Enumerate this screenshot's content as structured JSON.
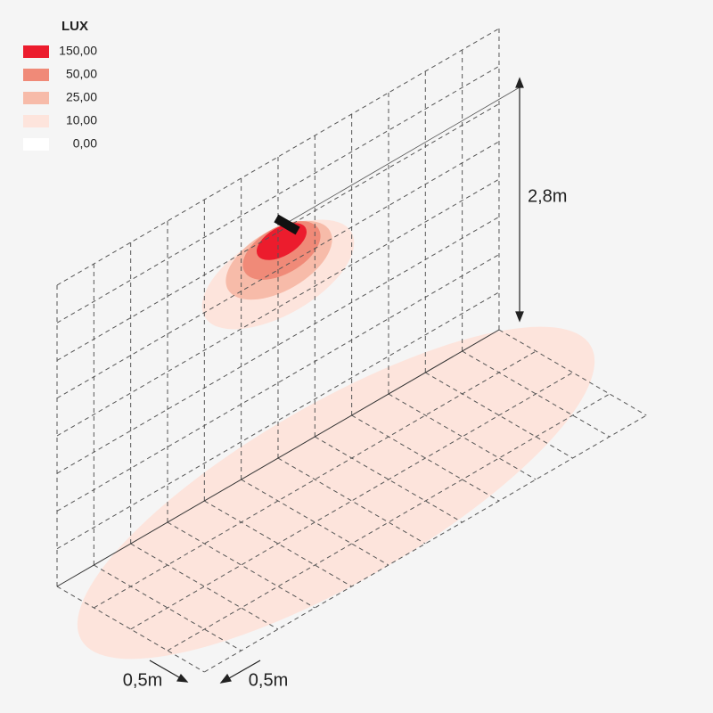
{
  "legend": {
    "title": "LUX",
    "items": [
      {
        "label": "150,00",
        "color": "#ec1c2d"
      },
      {
        "label": "50,00",
        "color": "#f08a78"
      },
      {
        "label": "25,00",
        "color": "#f7bba9"
      },
      {
        "label": "10,00",
        "color": "#fde4dc"
      },
      {
        "label": "0,00",
        "color": "#ffffff"
      }
    ]
  },
  "dimensions": {
    "height": "2,8m",
    "depth_grid": "0,5m",
    "width_grid": "0,5m"
  }
}
